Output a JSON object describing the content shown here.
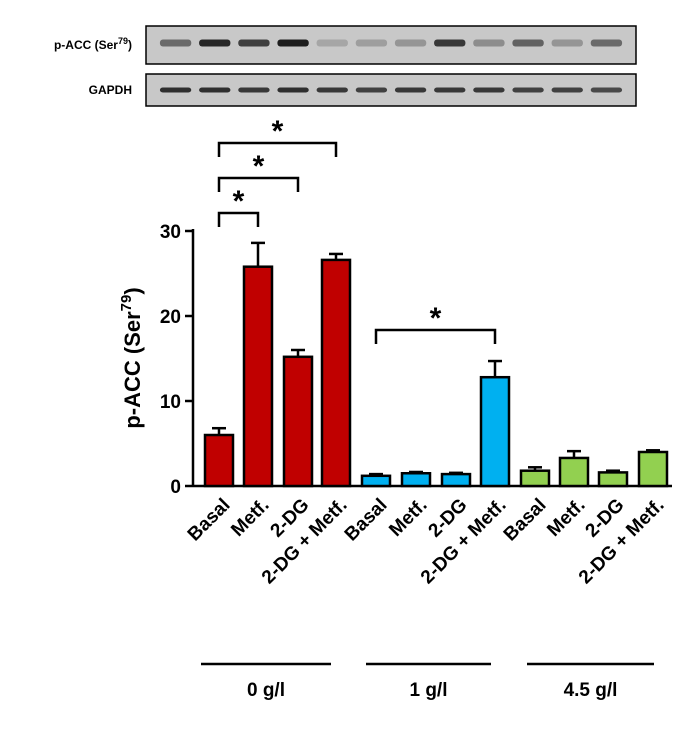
{
  "blots": [
    {
      "label": "p-ACC (Ser",
      "sup": "79",
      "label_end": ")",
      "intensities": [
        0.55,
        0.95,
        0.8,
        1.0,
        0.2,
        0.25,
        0.3,
        0.85,
        0.35,
        0.6,
        0.3,
        0.55
      ]
    },
    {
      "label": "GAPDH",
      "sup": "",
      "label_end": "",
      "intensities": [
        0.9,
        0.9,
        0.85,
        0.9,
        0.85,
        0.8,
        0.85,
        0.85,
        0.85,
        0.8,
        0.8,
        0.75
      ]
    }
  ],
  "chart_data": {
    "type": "bar",
    "ylabel": "p-ACC (Ser",
    "ylabel_sup": "79",
    "ylabel_end": ")",
    "ylim": [
      0,
      30
    ],
    "yticks": [
      0,
      10,
      20,
      30
    ],
    "categories": [
      "Basal",
      "Metf.",
      "2-DG",
      "2-DG + Metf.",
      "Basal",
      "Metf.",
      "2-DG",
      "2-DG + Metf.",
      "Basal",
      "Metf.",
      "2-DG",
      "2-DG + Metf."
    ],
    "values": [
      6.0,
      25.8,
      15.2,
      26.6,
      1.2,
      1.5,
      1.4,
      12.8,
      1.8,
      3.3,
      1.6,
      4.0
    ],
    "errors": [
      0.8,
      2.8,
      0.8,
      0.7,
      0.2,
      0.15,
      0.15,
      1.9,
      0.4,
      0.8,
      0.2,
      0.2
    ],
    "groups": [
      {
        "label": "0 g/l",
        "indices": [
          0,
          1,
          2,
          3
        ],
        "color": "#c00000"
      },
      {
        "label": "1 g/l",
        "indices": [
          4,
          5,
          6,
          7
        ],
        "color": "#00b0f0"
      },
      {
        "label": "4.5 g/l",
        "indices": [
          8,
          9,
          10,
          11
        ],
        "color": "#92d050"
      }
    ],
    "significance": [
      {
        "from": 0,
        "to": 1,
        "label": "*"
      },
      {
        "from": 0,
        "to": 2,
        "label": "*"
      },
      {
        "from": 0,
        "to": 3,
        "label": "*"
      },
      {
        "from": 4,
        "to": 7,
        "label": "*"
      }
    ],
    "grid": false,
    "legend": "none"
  }
}
